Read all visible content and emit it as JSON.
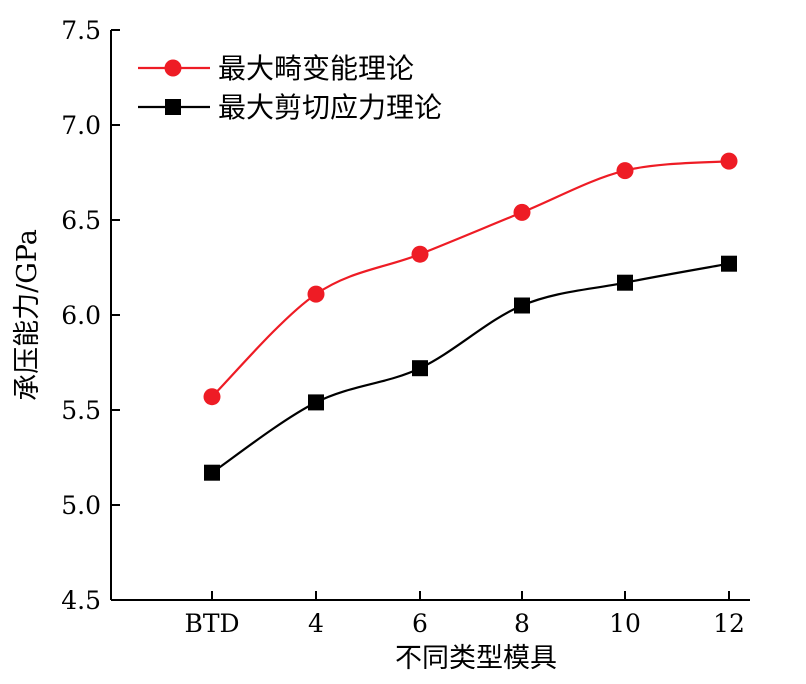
{
  "chart_data": {
    "type": "line",
    "title": "",
    "xlabel": "不同类型模具",
    "ylabel": "承压能力/GPa",
    "categories": [
      "BTD",
      "4",
      "6",
      "8",
      "10",
      "12"
    ],
    "ylim": [
      4.5,
      7.5
    ],
    "yticks": [
      "4.5",
      "5.0",
      "5.5",
      "6.0",
      "6.5",
      "7.0",
      "7.5"
    ],
    "grid": false,
    "legend_position": "top-left",
    "series": [
      {
        "name": "最大畸变能理论",
        "values": [
          5.57,
          6.11,
          6.32,
          6.54,
          6.76,
          6.81
        ],
        "color": "#ee1c25",
        "marker": "circle"
      },
      {
        "name": "最大剪切应力理论",
        "values": [
          5.17,
          5.54,
          5.72,
          6.05,
          6.17,
          6.27
        ],
        "color": "#000000",
        "marker": "square"
      }
    ]
  }
}
